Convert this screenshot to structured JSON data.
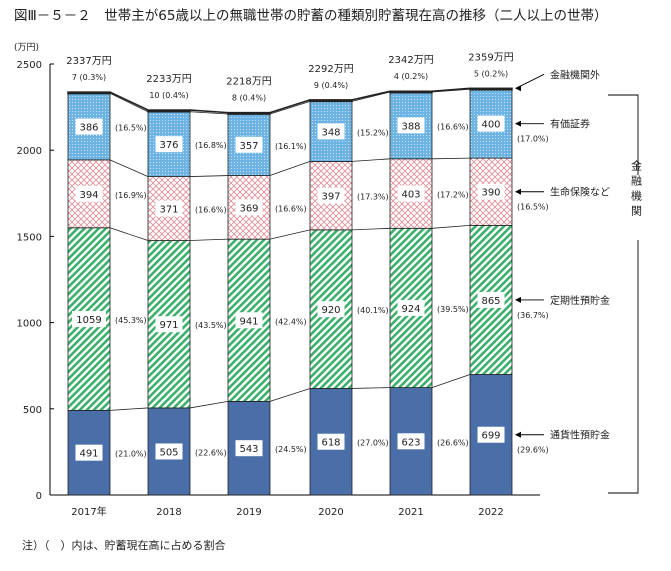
{
  "chart_data": {
    "type": "bar",
    "stacked": true,
    "title": "図Ⅲ－５－２　世帯主が65歳以上の無職世帯の貯蓄の種類別貯蓄現在高の推移（二人以上の世帯）",
    "ylabel": "(万円)",
    "ylim": [
      0,
      2500
    ],
    "yticks": [
      0,
      500,
      1000,
      1500,
      2000,
      2500
    ],
    "categories": [
      "2017年",
      "2018",
      "2019",
      "2020",
      "2021",
      "2022"
    ],
    "totals": [
      "2337万円",
      "2233万円",
      "2218万円",
      "2292万円",
      "2342万円",
      "2359万円"
    ],
    "series": [
      {
        "name": "通貨性預貯金",
        "color": "#4a6fa8",
        "values": [
          491,
          505,
          543,
          618,
          623,
          699
        ],
        "percent": [
          "(21.0%)",
          "(22.6%)",
          "(24.5%)",
          "(27.0%)",
          "(26.6%)",
          "(29.6%)"
        ]
      },
      {
        "name": "定期性預貯金",
        "color": "#3bb06a",
        "values": [
          1059,
          971,
          941,
          920,
          924,
          865
        ],
        "percent": [
          "(45.3%)",
          "(43.5%)",
          "(42.4%)",
          "(40.1%)",
          "(39.5%)",
          "(36.7%)"
        ]
      },
      {
        "name": "生命保険など",
        "color": "#e8a0a8",
        "values": [
          394,
          371,
          369,
          397,
          403,
          390
        ],
        "percent": [
          "(16.9%)",
          "(16.6%)",
          "(16.6%)",
          "(17.3%)",
          "(17.2%)",
          "(16.5%)"
        ]
      },
      {
        "name": "有価証券",
        "color": "#6db4e4",
        "values": [
          386,
          376,
          357,
          348,
          388,
          400
        ],
        "percent": [
          "(16.5%)",
          "(16.8%)",
          "(16.1%)",
          "(15.2%)",
          "(16.6%)",
          "(17.0%)"
        ]
      },
      {
        "name": "金融機関外",
        "color": "#111111",
        "values": [
          7,
          10,
          8,
          9,
          4,
          5
        ],
        "percent": [
          "(0.3%)",
          "(0.4%)",
          "(0.4%)",
          "(0.4%)",
          "(0.2%)",
          "(0.2%)"
        ]
      }
    ],
    "bracket_label": "金融機関",
    "legend_placement": "right",
    "grid": false
  },
  "note": "注）（　）内は、貯蓄現在高に占める割合"
}
